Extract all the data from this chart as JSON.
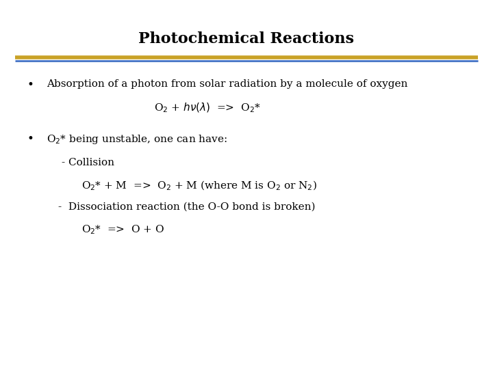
{
  "title": "Photochemical Reactions",
  "title_fontsize": 16,
  "title_fontweight": "bold",
  "bg_color": "#ffffff",
  "separator_line_gold_color": "#c9a227",
  "separator_line_blue_color": "#4472c4",
  "bullet1_text": "Absorption of a photon from solar radiation by a molecule of oxygen",
  "bullet1_eq": "O$_2$ + $h\\nu(\\lambda)$  =>  O$_2$*",
  "bullet2_intro": "O$_2$* being unstable, one can have:",
  "collision_label": "- Collision",
  "collision_eq": "O$_2$* + M  =>  O$_2$ + M (where M is O$_2$ or N$_2$)",
  "dissociation_label": "-  Dissociation reaction (the O-O bond is broken)",
  "dissociation_eq": "O$_2$*  =>  O + O",
  "text_color": "#000000",
  "body_fontsize": 11,
  "eq_fontsize": 11
}
